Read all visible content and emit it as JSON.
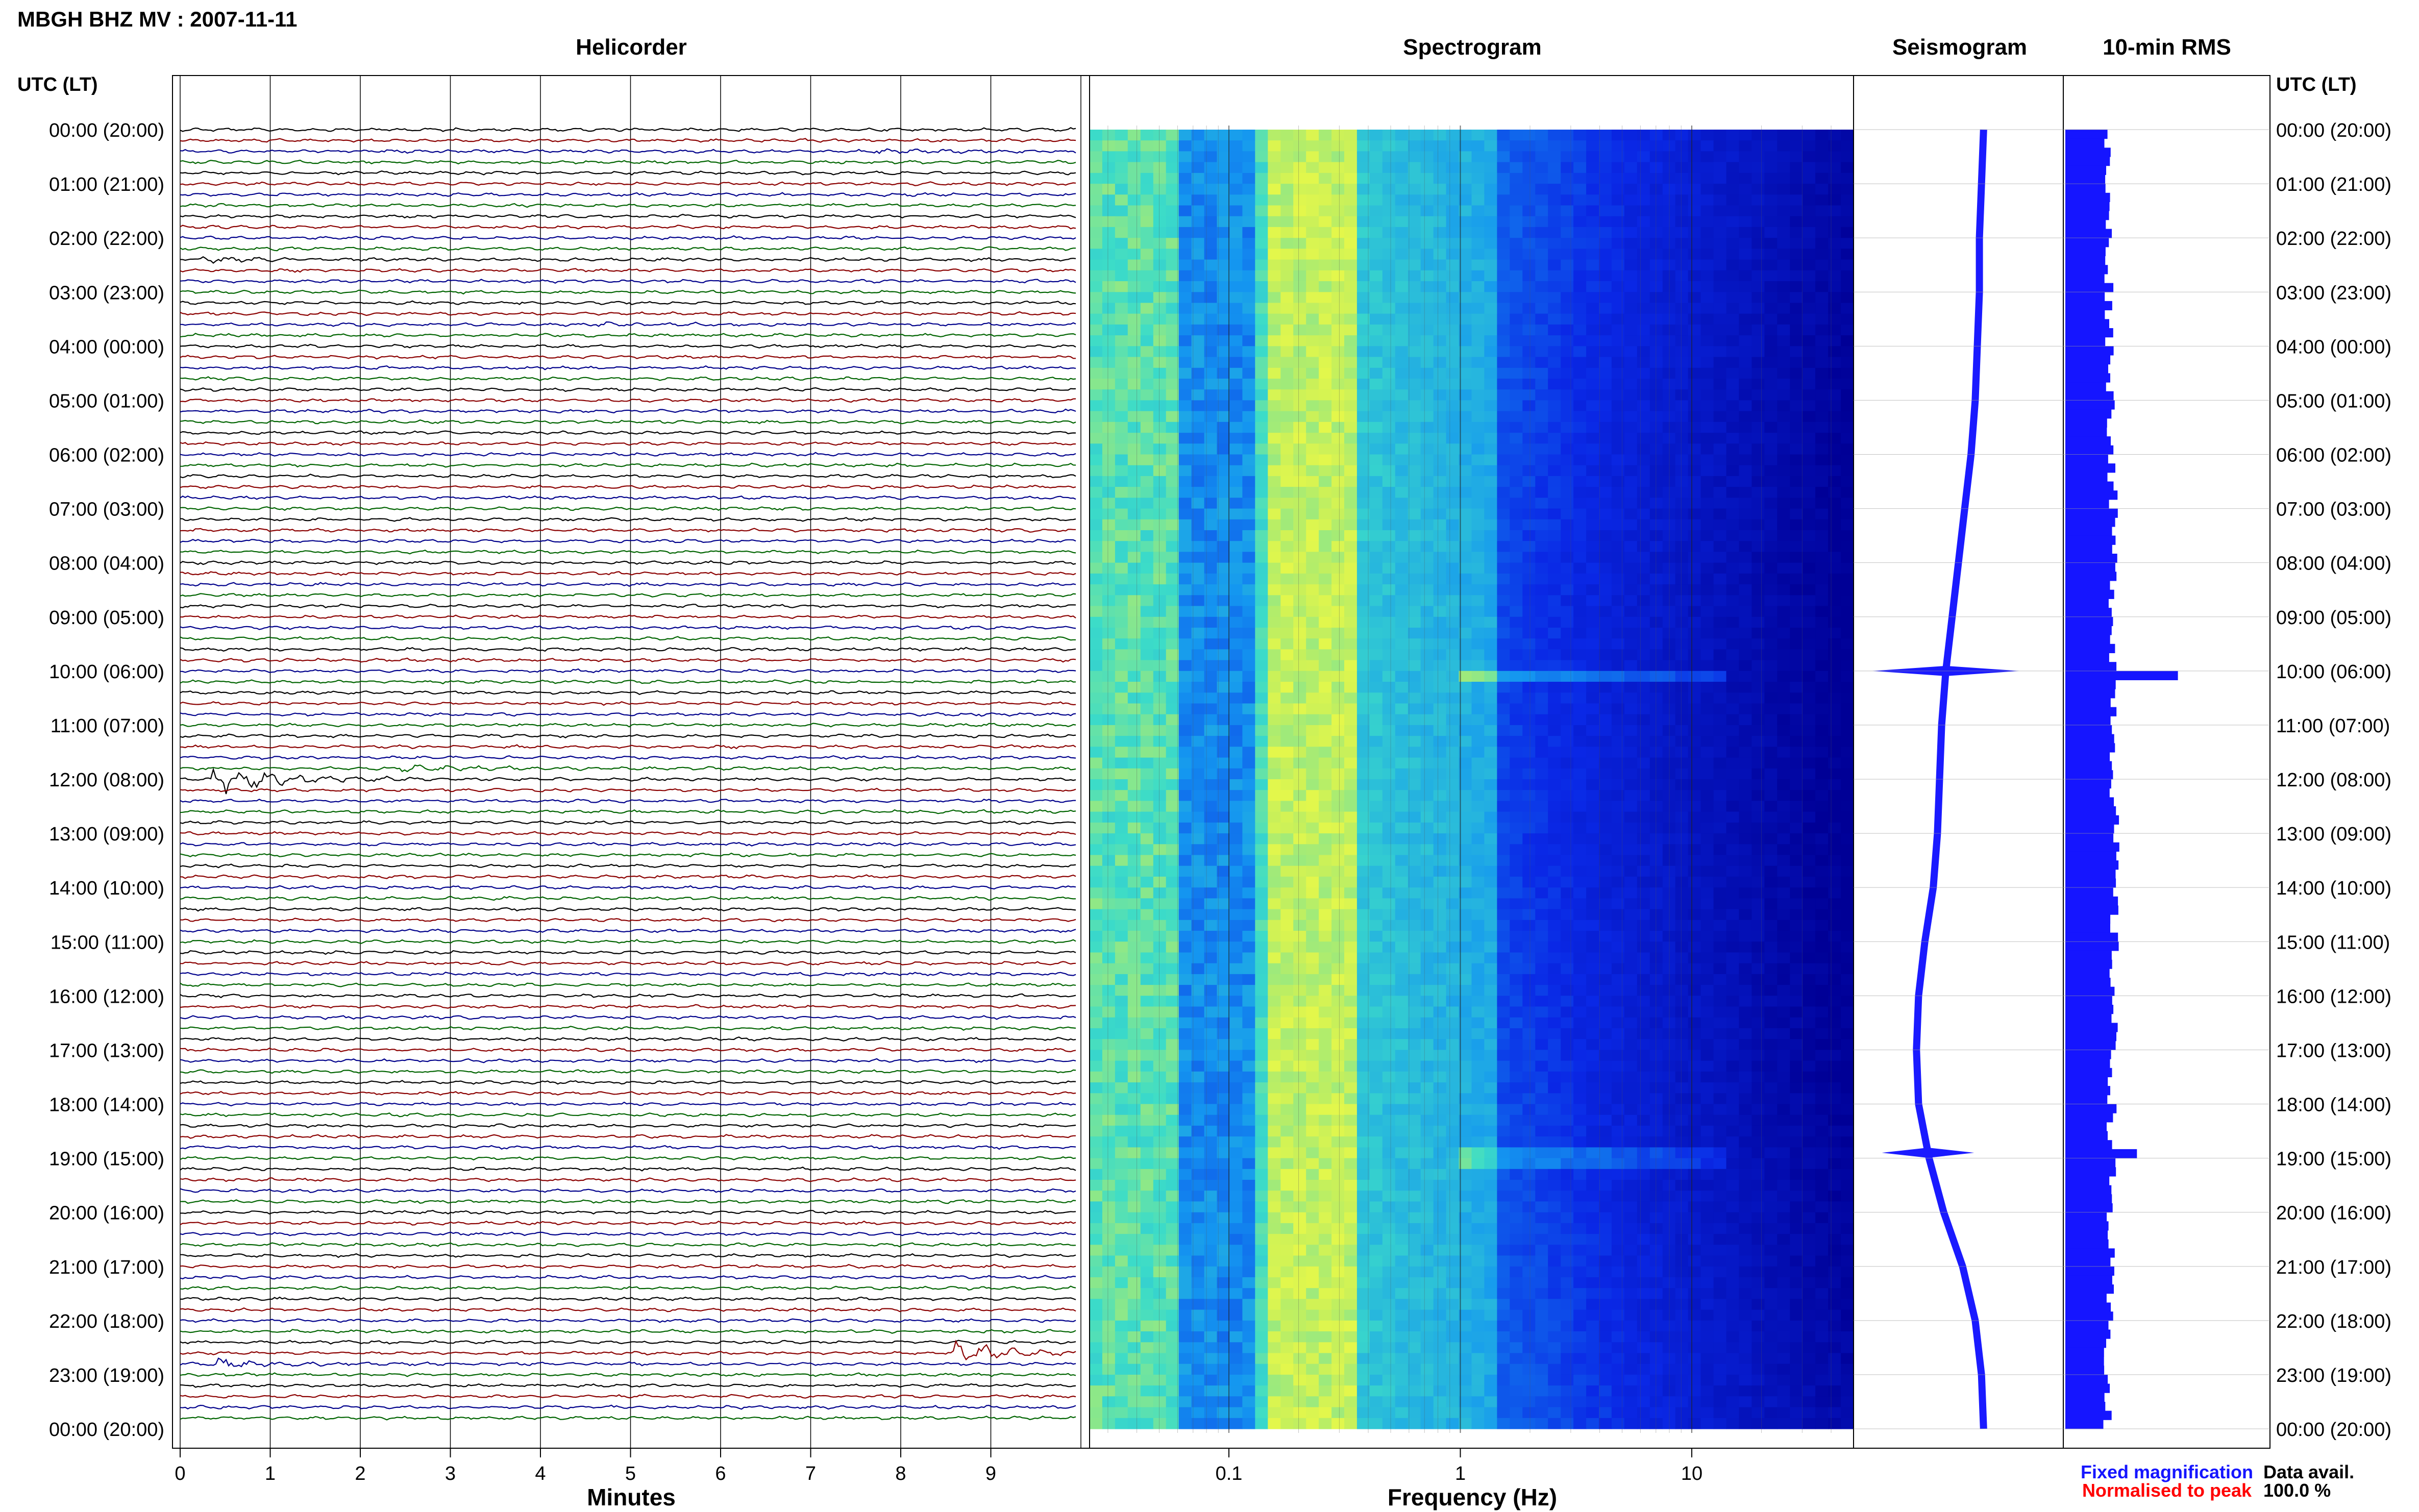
{
  "header": {
    "station_title": "MBGH BHZ MV : 2007-11-11",
    "utc_label_left": "UTC (LT)",
    "utc_label_right": "UTC (LT)"
  },
  "panels": {
    "helicorder": "Helicorder",
    "spectrogram": "Spectrogram",
    "seismogram": "Seismogram",
    "rms": "10-min RMS"
  },
  "axes": {
    "minutes_label": "Minutes",
    "frequency_label": "Frequency (Hz)",
    "minute_ticks": [
      "0",
      "1",
      "2",
      "3",
      "4",
      "5",
      "6",
      "7",
      "8",
      "9"
    ],
    "frequency_ticks": [
      "0.1",
      "1",
      "10"
    ]
  },
  "time_labels": [
    "00:00 (20:00)",
    "01:00 (21:00)",
    "02:00 (22:00)",
    "03:00 (23:00)",
    "04:00 (00:00)",
    "05:00 (01:00)",
    "06:00 (02:00)",
    "07:00 (03:00)",
    "08:00 (04:00)",
    "09:00 (05:00)",
    "10:00 (06:00)",
    "11:00 (07:00)",
    "12:00 (08:00)",
    "13:00 (09:00)",
    "14:00 (10:00)",
    "15:00 (11:00)",
    "16:00 (12:00)",
    "17:00 (13:00)",
    "18:00 (14:00)",
    "19:00 (15:00)",
    "20:00 (16:00)",
    "21:00 (17:00)",
    "22:00 (18:00)",
    "23:00 (19:00)",
    "00:00 (20:00)"
  ],
  "legend": {
    "fixed": "Fixed magnification",
    "normalised": "Normalised to peak",
    "data_avail_label": "Data avail.",
    "data_avail_value": "100.0 %"
  },
  "colors": {
    "trace_black": "#000000",
    "trace_red": "#8b0000",
    "trace_blue": "#00008b",
    "trace_green": "#006400",
    "seismogram": "#1a1aff",
    "rms_fill": "#1515ff",
    "legend_fixed": "#1515ff",
    "legend_normalised": "#ff0000"
  },
  "chart_data": [
    {
      "type": "line",
      "title": "Helicorder",
      "xlabel": "Minutes",
      "x_range": [
        0,
        10
      ],
      "rows": 120,
      "row_minutes": 10,
      "trace_color_cycle": [
        "black",
        "red",
        "blue",
        "green"
      ],
      "events": [
        {
          "utc": "00:20",
          "minute": 7.7,
          "amp": 0.6
        },
        {
          "utc": "02:00",
          "minute": 0.3,
          "amp": 0.5
        },
        {
          "utc": "03:00",
          "minute": 4.6,
          "amp": 0.4
        },
        {
          "utc": "09:50",
          "minute": 2.5,
          "amp": 0.9
        },
        {
          "utc": "10:00",
          "minute": 0.4,
          "amp": 3.5
        },
        {
          "utc": "18:50",
          "minute": 8.6,
          "amp": 3.0
        },
        {
          "utc": "19:00",
          "minute": 0.4,
          "amp": 1.2
        }
      ]
    },
    {
      "type": "heatmap",
      "title": "Spectrogram",
      "xlabel": "Frequency (Hz)",
      "x_scale": "log",
      "x_range": [
        0.025,
        50
      ],
      "rows": 120,
      "peak_band_hz": [
        0.15,
        0.35
      ]
    },
    {
      "type": "line",
      "title": "Seismogram",
      "x": [
        0,
        1,
        2,
        3,
        4,
        5,
        6,
        7,
        8,
        9,
        10,
        11,
        12,
        13,
        14,
        15,
        16,
        17,
        18,
        19,
        20,
        21,
        22,
        23,
        24
      ],
      "values": [
        0.62,
        0.61,
        0.6,
        0.6,
        0.59,
        0.58,
        0.56,
        0.53,
        0.5,
        0.47,
        0.44,
        0.42,
        0.41,
        0.4,
        0.38,
        0.34,
        0.31,
        0.3,
        0.31,
        0.36,
        0.43,
        0.52,
        0.58,
        0.61,
        0.62
      ],
      "spikes": [
        {
          "hour": 10.0,
          "amp": 0.35
        },
        {
          "hour": 18.9,
          "amp": 0.22
        }
      ]
    },
    {
      "type": "bar",
      "title": "10-min RMS",
      "rows": 144,
      "baseline_level": 0.2,
      "peaks": [
        {
          "hour": 10.0,
          "value": 0.55
        },
        {
          "hour": 18.9,
          "value": 0.35
        }
      ]
    }
  ]
}
